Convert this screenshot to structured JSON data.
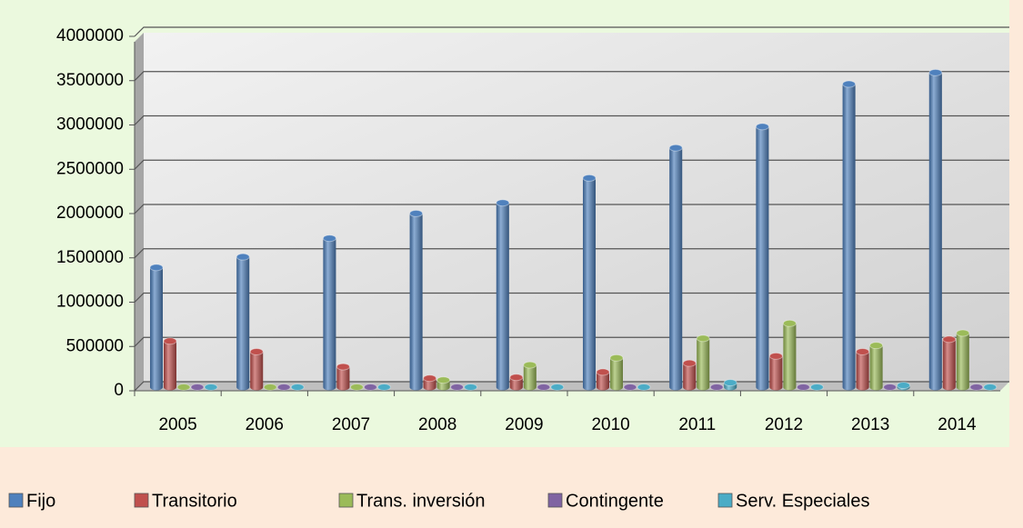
{
  "chart_data": {
    "type": "bar",
    "categories": [
      "2005",
      "2006",
      "2007",
      "2008",
      "2009",
      "2010",
      "2011",
      "2012",
      "2013",
      "2014"
    ],
    "series": [
      {
        "name": "Fijo",
        "color": "#4f81bd",
        "values": [
          1350000,
          1470000,
          1680000,
          1960000,
          2080000,
          2360000,
          2700000,
          2940000,
          3420000,
          3550000
        ]
      },
      {
        "name": "Transitorio",
        "color": "#c0504d",
        "values": [
          520000,
          400000,
          230000,
          100000,
          110000,
          170000,
          270000,
          350000,
          400000,
          540000
        ]
      },
      {
        "name": "Trans. inversión",
        "color": "#9bbb59",
        "values": [
          0,
          0,
          0,
          80000,
          250000,
          330000,
          550000,
          720000,
          470000,
          610000
        ]
      },
      {
        "name": "Contingente",
        "color": "#8064a2",
        "values": [
          0,
          0,
          0,
          0,
          0,
          0,
          0,
          0,
          0,
          0
        ]
      },
      {
        "name": "Serv. Especiales",
        "color": "#4bacc6",
        "values": [
          0,
          0,
          0,
          0,
          0,
          0,
          50000,
          0,
          20000,
          0
        ]
      }
    ],
    "ylim": [
      0,
      4000000
    ],
    "yticks": [
      0,
      500000,
      1000000,
      1500000,
      2000000,
      2500000,
      3000000,
      3500000,
      4000000
    ],
    "grid": true,
    "legend": "bottom"
  }
}
